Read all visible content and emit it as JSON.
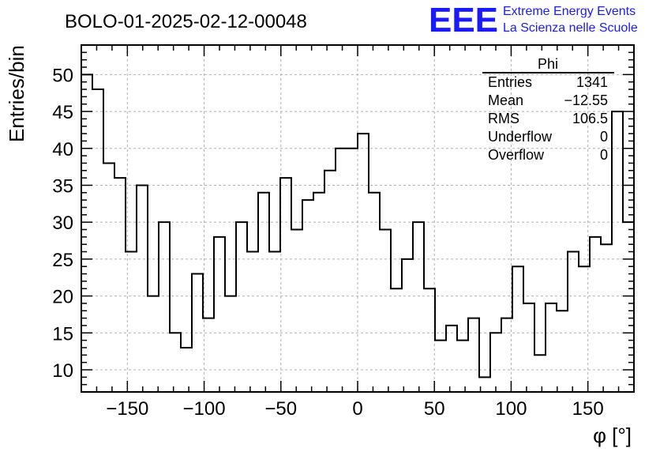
{
  "chart_data": {
    "type": "bar",
    "style": "step-histogram",
    "title": "BOLO-01-2025-02-12-00048",
    "xlabel": "φ [°]",
    "ylabel": "Entries/bin",
    "xlim": [
      -180,
      180
    ],
    "ylim": [
      7,
      54
    ],
    "grid": true,
    "bin_width": 7.2,
    "values": [
      50,
      48,
      38,
      36,
      26,
      35,
      20,
      30,
      15,
      13,
      23,
      17,
      28,
      20,
      30,
      26,
      34,
      26,
      36,
      29,
      33,
      34,
      37,
      40,
      40,
      42,
      34,
      29,
      21,
      25,
      30,
      21,
      14,
      16,
      14,
      17,
      9,
      15,
      17,
      24,
      19,
      12,
      19,
      18,
      26,
      24,
      28,
      27,
      45,
      30
    ],
    "xticks": [
      -150,
      -100,
      -50,
      0,
      50,
      100,
      150
    ],
    "xtick_labels": [
      "−150",
      "−100",
      "−50",
      "0",
      "50",
      "100",
      "150"
    ],
    "yticks": [
      10,
      15,
      20,
      25,
      30,
      35,
      40,
      45,
      50
    ],
    "ytick_labels": [
      "10",
      "15",
      "20",
      "25",
      "30",
      "35",
      "40",
      "45",
      "50"
    ]
  },
  "stats_box": {
    "title": "Phi",
    "rows": [
      {
        "label": "Entries",
        "value": "1341"
      },
      {
        "label": "Mean",
        "value": "−12.55"
      },
      {
        "label": "RMS",
        "value": "106.5"
      },
      {
        "label": "Underflow",
        "value": "0"
      },
      {
        "label": "Overflow",
        "value": "0"
      }
    ]
  },
  "logo": {
    "mark": "EEE",
    "line1": "Extreme Energy Events",
    "line2": "La Scienza nelle Scuole",
    "color": "#1a1aff"
  },
  "colors": {
    "line": "#000000",
    "grid": "#b0b0b0"
  }
}
